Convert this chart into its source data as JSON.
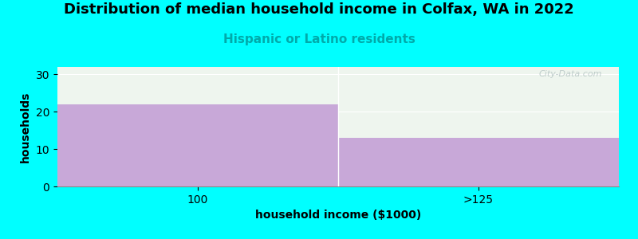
{
  "categories": [
    "100",
    ">125"
  ],
  "values": [
    22,
    13
  ],
  "bar_color": "#c8a8d8",
  "background_color": "#00ffff",
  "plot_bg_color": "#eef5ee",
  "title": "Distribution of median household income in Colfax, WA in 2022",
  "subtitle": "Hispanic or Latino residents",
  "subtitle_color": "#00aaaa",
  "xlabel": "household income ($1000)",
  "ylabel": "households",
  "ylim": [
    0,
    32
  ],
  "yticks": [
    0,
    10,
    20,
    30
  ],
  "title_fontsize": 13,
  "subtitle_fontsize": 11,
  "label_fontsize": 10,
  "tick_fontsize": 10,
  "watermark": "City-Data.com"
}
